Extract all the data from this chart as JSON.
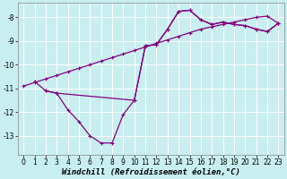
{
  "bg_color": "#c8eef0",
  "grid_color": "#ffffff",
  "line_color": "#800080",
  "marker": "+",
  "xlabel": "Windchill (Refroidissement éolien,°C)",
  "xlabel_fontsize": 6.5,
  "ylabel_ticks": [
    -13,
    -12,
    -11,
    -10,
    -9,
    -8
  ],
  "xlim": [
    -0.5,
    23.5
  ],
  "ylim": [
    -13.8,
    -7.4
  ],
  "xticks": [
    0,
    1,
    2,
    3,
    4,
    5,
    6,
    7,
    8,
    9,
    10,
    11,
    12,
    13,
    14,
    15,
    16,
    17,
    18,
    19,
    20,
    21,
    22,
    23
  ],
  "line_A_x": [
    1,
    2,
    3,
    4,
    5,
    6,
    7,
    8,
    9,
    10,
    11,
    12,
    13,
    14,
    15,
    16,
    17,
    18,
    19,
    20,
    21,
    22,
    23
  ],
  "line_A_y": [
    -10.7,
    -11.1,
    -11.2,
    -11.9,
    -12.4,
    -13.0,
    -13.3,
    -13.3,
    -12.1,
    -11.5,
    -9.2,
    -9.15,
    -8.5,
    -7.75,
    -7.7,
    -8.1,
    -8.3,
    -8.2,
    -8.3,
    -8.35,
    -8.5,
    -8.6,
    -8.25
  ],
  "line_B_x": [
    0,
    1,
    2,
    3,
    4,
    5,
    6,
    7,
    8,
    9,
    10,
    11,
    12,
    13,
    14,
    15,
    16,
    17,
    18,
    19,
    20,
    21,
    22,
    23
  ],
  "line_B_y": [
    -10.9,
    -10.75,
    -10.6,
    -10.45,
    -10.3,
    -10.15,
    -10.0,
    -9.85,
    -9.7,
    -9.55,
    -9.4,
    -9.25,
    -9.1,
    -8.95,
    -8.8,
    -8.65,
    -8.5,
    -8.4,
    -8.3,
    -8.2,
    -8.1,
    -8.0,
    -7.95,
    -8.25
  ],
  "line_C_x": [
    2,
    3,
    10,
    11,
    12,
    13,
    14,
    15,
    16,
    17,
    18,
    19,
    20,
    21,
    22,
    23
  ],
  "line_C_y": [
    -11.1,
    -11.2,
    -11.5,
    -9.2,
    -9.15,
    -8.5,
    -7.75,
    -7.7,
    -8.1,
    -8.3,
    -8.2,
    -8.3,
    -8.35,
    -8.5,
    -8.6,
    -8.25
  ]
}
